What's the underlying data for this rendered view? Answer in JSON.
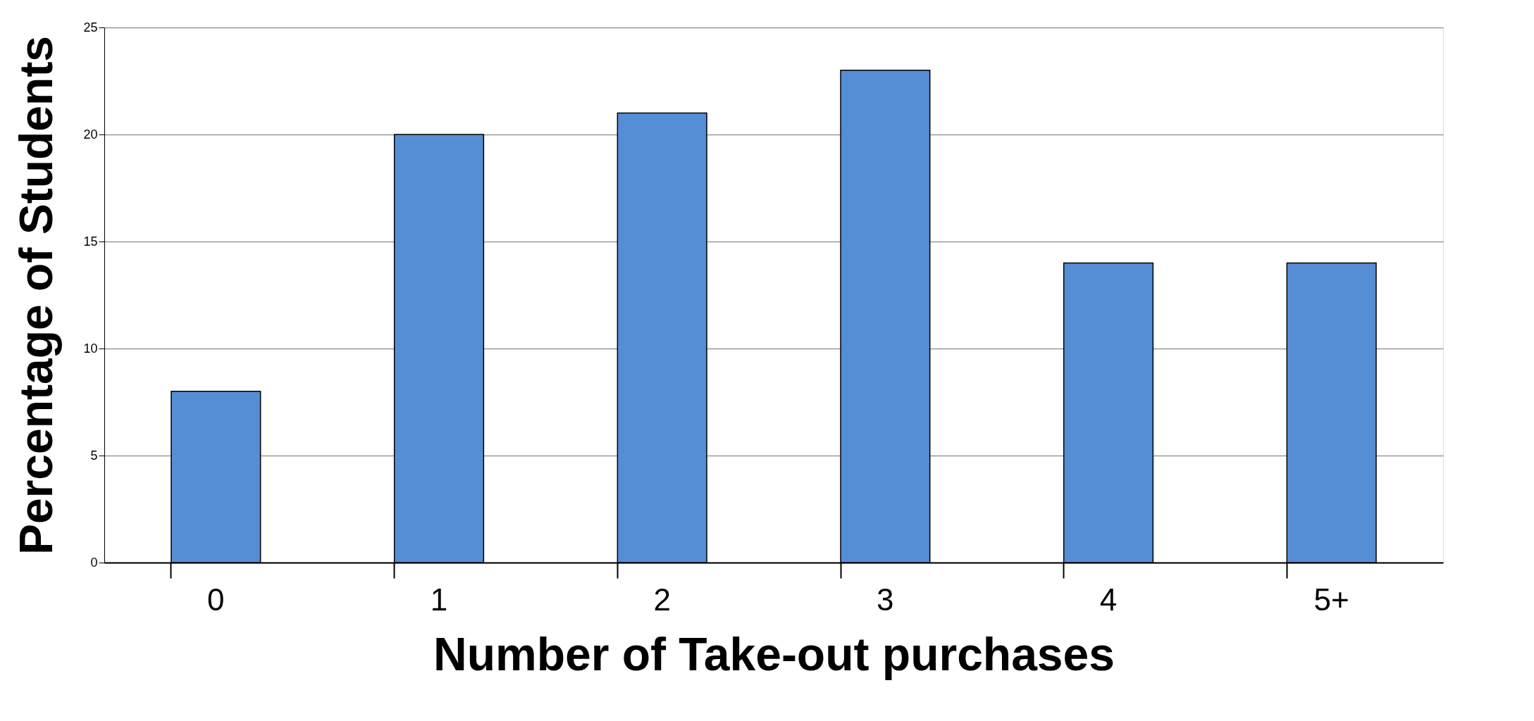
{
  "chart_data": {
    "type": "bar",
    "xlabel": "Number of Take-out purchases",
    "ylabel": "Percentage of Students",
    "categories": [
      "0",
      "1",
      "2",
      "3",
      "4",
      "5+"
    ],
    "values": [
      8,
      20,
      21,
      23,
      14,
      14
    ],
    "color": "#558ed5",
    "ylim": [
      0,
      25
    ],
    "yticks": [
      0,
      5,
      10,
      15,
      20,
      25
    ],
    "grid": "y"
  }
}
